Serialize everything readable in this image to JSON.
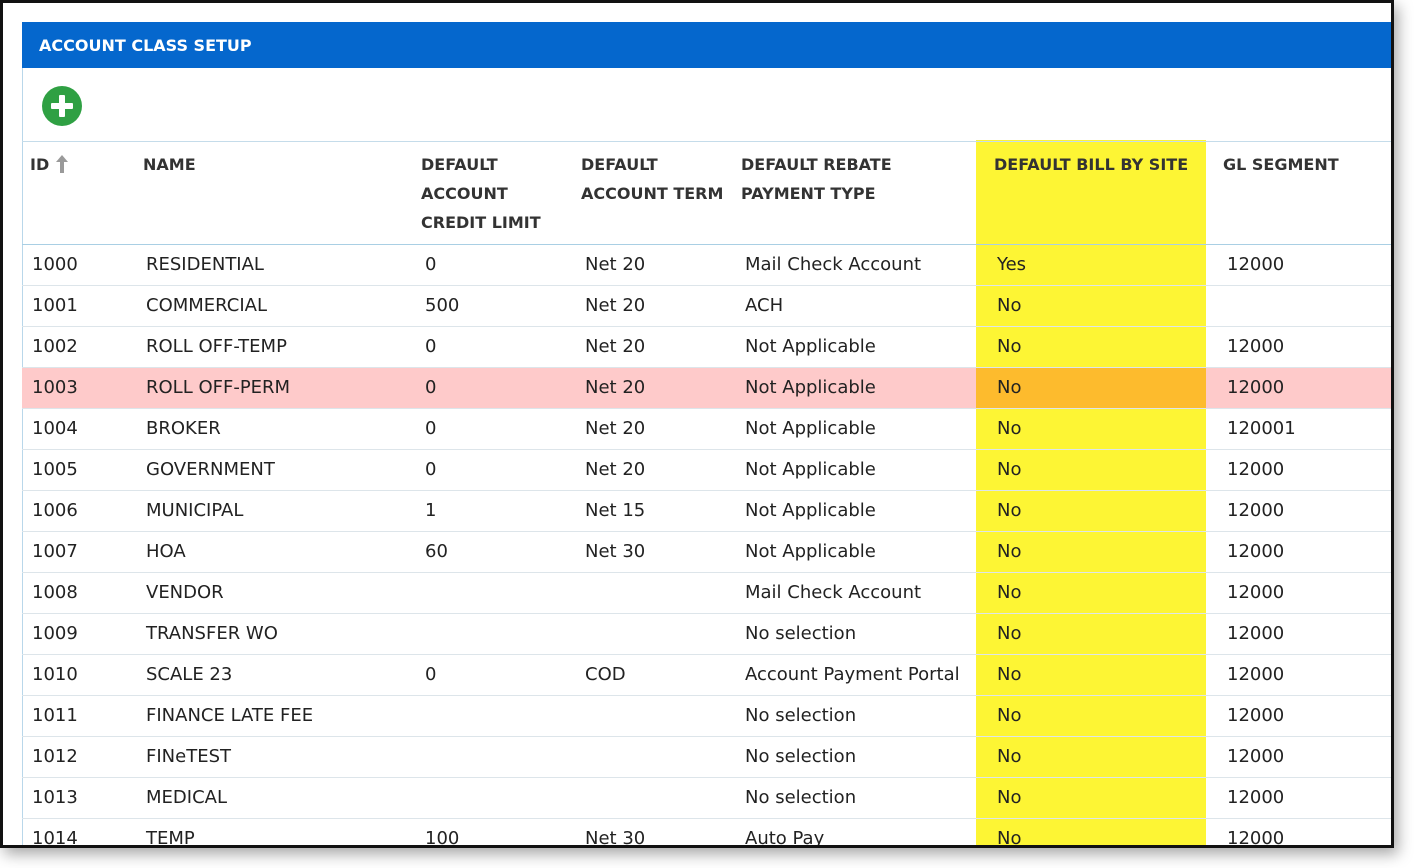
{
  "header": {
    "title": "ACCOUNT CLASS SETUP"
  },
  "table": {
    "columns": [
      "ID",
      "NAME",
      "DEFAULT ACCOUNT CREDIT LIMIT",
      "DEFAULT ACCOUNT TERM",
      "DEFAULT REBATE PAYMENT TYPE",
      "DEFAULT BILL BY SITE",
      "GL SEGMENT"
    ],
    "rows": [
      [
        "1000",
        "RESIDENTIAL",
        "0",
        "Net 20",
        "Mail Check Account",
        "Yes",
        "12000"
      ],
      [
        "1001",
        "COMMERCIAL",
        "500",
        "Net 20",
        "ACH",
        "No",
        null
      ],
      [
        "1002",
        "ROLL OFF-TEMP",
        "0",
        "Net 20",
        "Not Applicable",
        "No",
        "12000"
      ],
      [
        "1003",
        "ROLL OFF-PERM",
        "0",
        "Net 20",
        "Not Applicable",
        "No",
        "12000"
      ],
      [
        "1004",
        "BROKER",
        "0",
        "Net 20",
        "Not Applicable",
        "No",
        "120001"
      ],
      [
        "1005",
        "GOVERNMENT",
        "0",
        "Net 20",
        "Not Applicable",
        "No",
        "12000"
      ],
      [
        "1006",
        "MUNICIPAL",
        "1",
        "Net 15",
        "Not Applicable",
        "No",
        "12000"
      ],
      [
        "1007",
        "HOA",
        "60",
        "Net 30",
        "Not Applicable",
        "No",
        "12000"
      ],
      [
        "1008",
        "VENDOR",
        null,
        null,
        "Mail Check Account",
        "No",
        "12000"
      ],
      [
        "1009",
        "TRANSFER WO",
        null,
        null,
        "No selection",
        "No",
        "12000"
      ],
      [
        "1010",
        "SCALE 23",
        "0",
        "COD",
        "Account Payment Portal",
        "No",
        "12000"
      ],
      [
        "1011",
        "FINANCE LATE FEE",
        null,
        null,
        "No selection",
        "No",
        "12000"
      ],
      [
        "1012",
        "FINeTEST",
        null,
        null,
        "No selection",
        "No",
        "12000"
      ],
      [
        "1013",
        "MEDICAL",
        null,
        null,
        "No selection",
        "No",
        "12000"
      ],
      [
        "1014",
        "TEMP",
        "100",
        "Net 30",
        "Auto Pay",
        "No",
        "12000"
      ]
    ]
  }
}
